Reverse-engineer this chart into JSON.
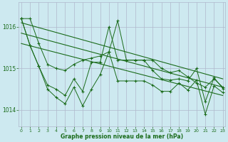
{
  "title": "Graphe pression niveau de la mer (hPa)",
  "background_color": "#cde9f0",
  "grid_color": "#b0b8cc",
  "line_color": "#1a6b1a",
  "x_ticks": [
    0,
    1,
    2,
    3,
    4,
    5,
    6,
    7,
    8,
    9,
    10,
    11,
    12,
    13,
    14,
    15,
    16,
    17,
    18,
    19,
    20,
    21,
    22,
    23
  ],
  "xlim": [
    -0.3,
    23.3
  ],
  "ylim": [
    1013.6,
    1016.6
  ],
  "yticks": [
    1014,
    1015,
    1016
  ],
  "figsize": [
    3.2,
    2.0
  ],
  "dpi": 100,
  "series1": [
    1016.2,
    1016.2,
    1015.6,
    1015.1,
    1015.0,
    1014.95,
    1015.1,
    1015.2,
    1015.25,
    1015.3,
    1015.4,
    1016.15,
    1015.2,
    1015.2,
    1015.2,
    1015.2,
    1015.0,
    1014.9,
    1014.95,
    1014.8,
    1014.65,
    1014.55,
    1014.75,
    1014.55
  ],
  "series2": [
    1016.2,
    1015.55,
    1015.05,
    1014.6,
    1014.5,
    1014.35,
    1014.75,
    1014.45,
    1015.15,
    1015.15,
    1016.0,
    1015.2,
    1015.2,
    1015.2,
    1015.2,
    1014.95,
    1014.75,
    1014.72,
    1014.75,
    1014.7,
    1015.0,
    1014.2,
    1014.78,
    1014.52
  ],
  "series3": [
    1016.2,
    1015.55,
    1015.05,
    1014.5,
    1014.3,
    1014.15,
    1014.55,
    1014.1,
    1014.5,
    1014.85,
    1015.4,
    1014.7,
    1014.7,
    1014.7,
    1014.7,
    1014.6,
    1014.45,
    1014.45,
    1014.65,
    1014.48,
    1014.72,
    1013.9,
    1014.58,
    1014.42
  ],
  "trend1_x": [
    0,
    23
  ],
  "trend1_y": [
    1016.1,
    1014.75
  ],
  "trend2_x": [
    0,
    23
  ],
  "trend2_y": [
    1015.85,
    1014.55
  ],
  "trend3_x": [
    0,
    23
  ],
  "trend3_y": [
    1015.6,
    1014.35
  ]
}
